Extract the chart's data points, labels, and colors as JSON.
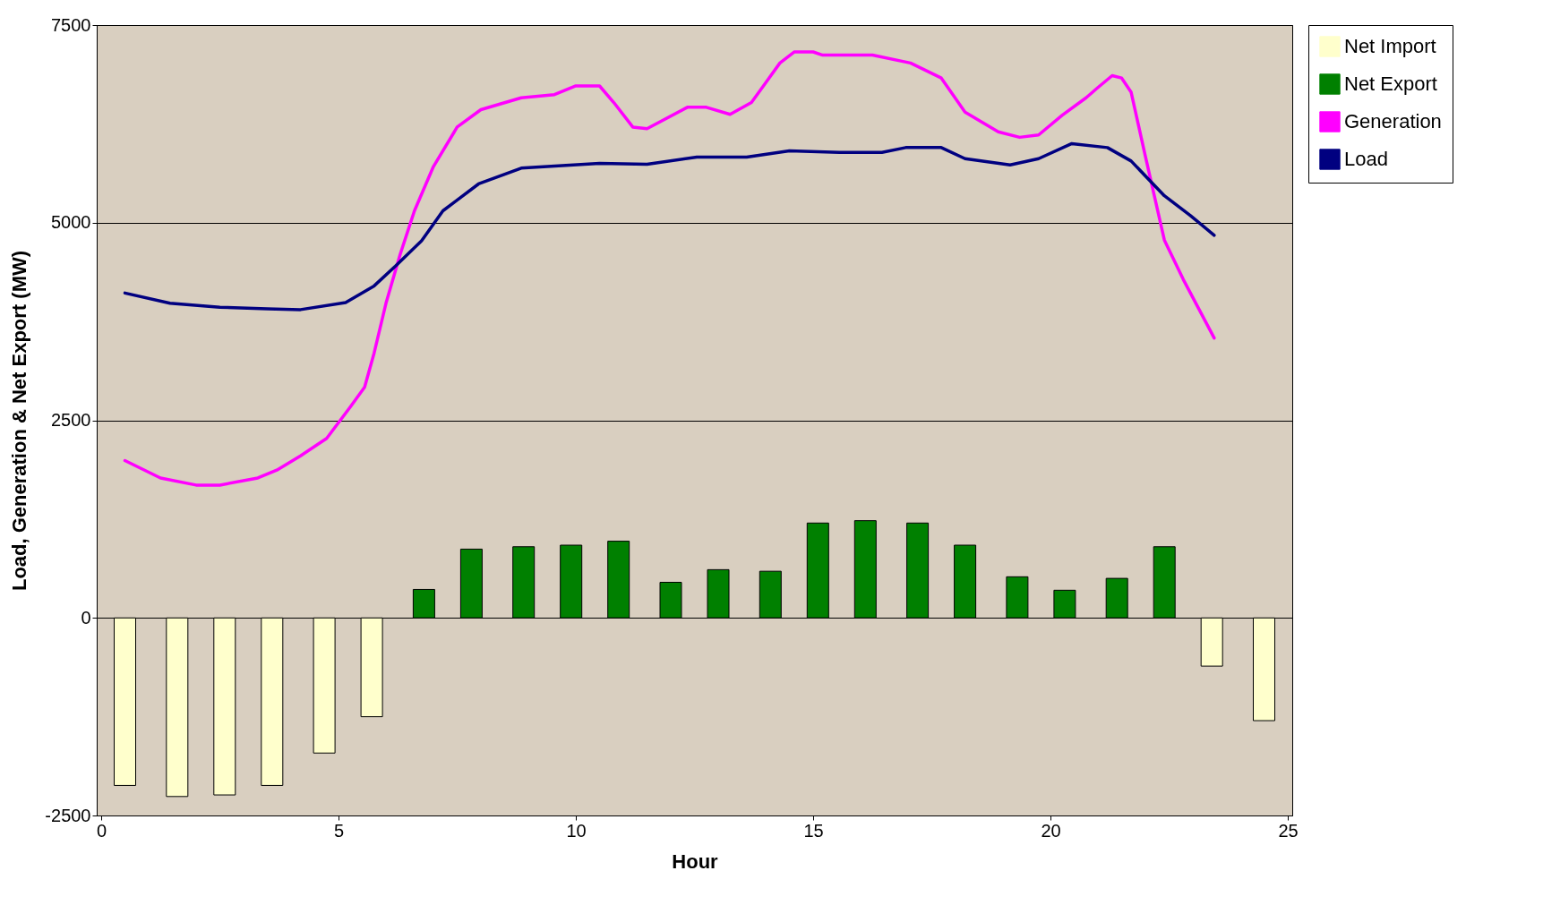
{
  "chart_data": {
    "type": "bar",
    "xlabel": "Hour",
    "ylabel": "Load, Generation & Net Export (MW)",
    "x": [
      0.5,
      1.6,
      2.6,
      3.6,
      4.7,
      5.7,
      6.8,
      7.8,
      8.9,
      9.9,
      10.9,
      12.0,
      13.0,
      14.1,
      15.1,
      16.1,
      17.2,
      18.2,
      19.3,
      20.3,
      21.4,
      22.4,
      23.4,
      24.5
    ],
    "xlim": [
      0,
      25
    ],
    "xticks": [
      0,
      5,
      10,
      15,
      20,
      25
    ],
    "ylim": [
      -2500,
      7500
    ],
    "yticks": [
      -2500,
      0,
      2500,
      5000,
      7500
    ],
    "grid": "y",
    "legend": "right",
    "series": [
      {
        "name": "Net Import",
        "color": "#ffffcc",
        "values": [
          -2120,
          -2260,
          -2240,
          -2120,
          -1710,
          -1250,
          null,
          null,
          null,
          null,
          null,
          null,
          null,
          null,
          null,
          null,
          null,
          null,
          null,
          null,
          null,
          null,
          -610,
          -1300
        ]
      },
      {
        "name": "Net Export",
        "color": "#008000",
        "values": [
          null,
          null,
          null,
          null,
          null,
          null,
          360,
          870,
          900,
          920,
          970,
          450,
          610,
          590,
          1200,
          1230,
          1200,
          920,
          520,
          350,
          500,
          900,
          null,
          null
        ]
      },
      {
        "name": "Generation",
        "type": "line",
        "color": "#ff00ff",
        "x": [
          0.5,
          1.25,
          2.0,
          2.5,
          3.3,
          3.7,
          4.2,
          4.75,
          5.25,
          5.55,
          5.75,
          6.0,
          6.3,
          6.6,
          7.0,
          7.5,
          8.0,
          8.85,
          9.55,
          10.0,
          10.5,
          10.8,
          11.2,
          11.5,
          12.35,
          12.75,
          13.25,
          13.7,
          14.0,
          14.3,
          14.6,
          15.0,
          15.2,
          16.25,
          17.05,
          17.7,
          18.2,
          18.9,
          19.35,
          19.75,
          20.25,
          20.75,
          21.0,
          21.3,
          21.5,
          21.7,
          22.0,
          22.4,
          22.8,
          23.45
        ],
        "values": [
          1990,
          1770,
          1680,
          1680,
          1770,
          1870,
          2050,
          2270,
          2670,
          2920,
          3350,
          3980,
          4600,
          5150,
          5710,
          6210,
          6430,
          6580,
          6620,
          6730,
          6730,
          6520,
          6210,
          6190,
          6460,
          6460,
          6370,
          6520,
          6770,
          7020,
          7160,
          7160,
          7120,
          7120,
          7020,
          6830,
          6400,
          6150,
          6080,
          6110,
          6360,
          6580,
          6710,
          6860,
          6830,
          6650,
          5840,
          4780,
          4280,
          3540
        ]
      },
      {
        "name": "Load",
        "type": "line",
        "color": "#000080",
        "x": [
          0.5,
          1.45,
          2.5,
          3.5,
          4.2,
          5.15,
          5.75,
          6.2,
          6.75,
          7.2,
          7.95,
          8.85,
          10.5,
          11.5,
          12.55,
          13.6,
          14.5,
          15.55,
          16.45,
          16.95,
          17.7,
          18.2,
          19.15,
          19.75,
          20.45,
          21.2,
          21.7,
          22.4,
          22.95,
          23.45
        ],
        "values": [
          4110,
          3980,
          3930,
          3910,
          3900,
          3990,
          4200,
          4450,
          4770,
          5150,
          5490,
          5690,
          5750,
          5740,
          5830,
          5830,
          5910,
          5890,
          5890,
          5950,
          5950,
          5810,
          5730,
          5810,
          6000,
          5950,
          5780,
          5340,
          5090,
          4840
        ]
      }
    ]
  }
}
